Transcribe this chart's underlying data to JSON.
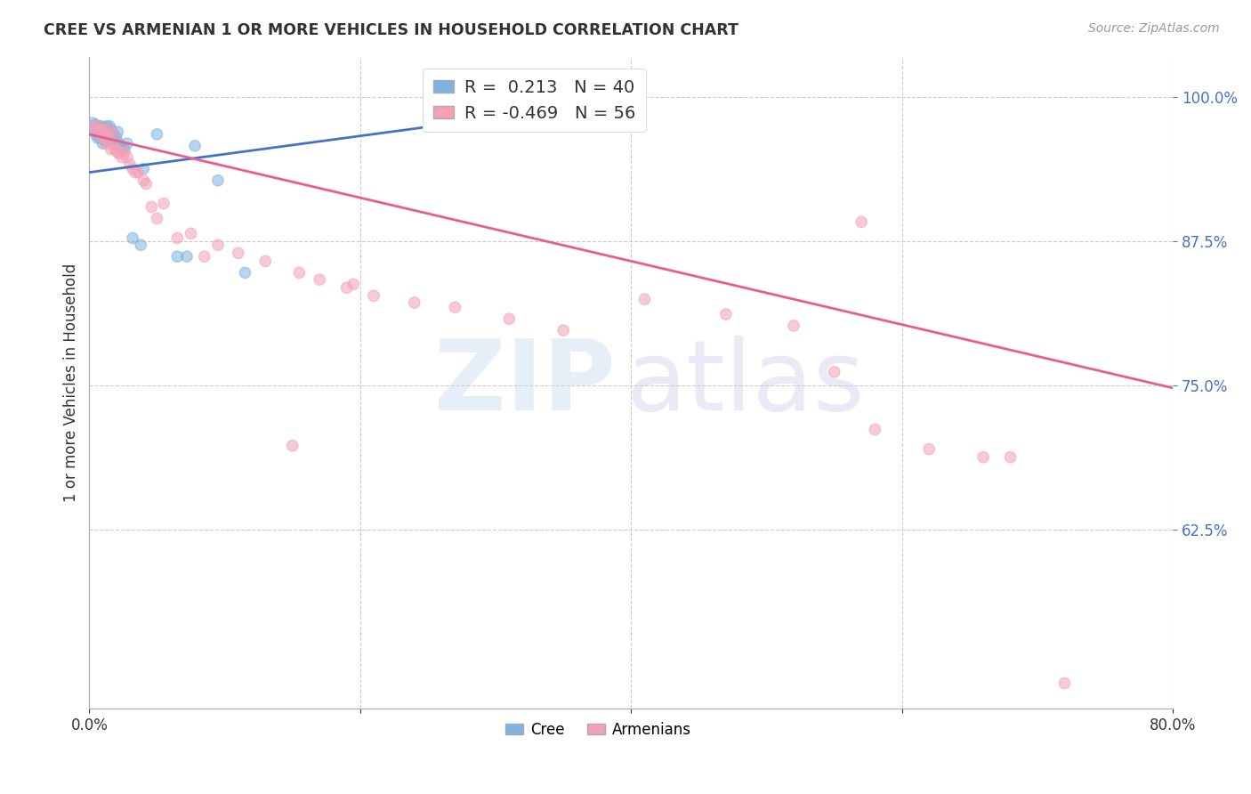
{
  "title": "CREE VS ARMENIAN 1 OR MORE VEHICLES IN HOUSEHOLD CORRELATION CHART",
  "source": "Source: ZipAtlas.com",
  "ylabel": "1 or more Vehicles in Household",
  "ytick_labels": [
    "100.0%",
    "87.5%",
    "75.0%",
    "62.5%"
  ],
  "ytick_values": [
    1.0,
    0.875,
    0.75,
    0.625
  ],
  "xlim": [
    0.0,
    0.8
  ],
  "ylim": [
    0.47,
    1.035
  ],
  "legend_cree": "Cree",
  "legend_armenian": "Armenians",
  "cree_color": "#7eb3e0",
  "armenian_color": "#f4a0b5",
  "cree_line_color": "#4472c4",
  "armenian_line_color": "#e85d8a",
  "cree_line_x": [
    0.0,
    0.38
  ],
  "cree_line_y": [
    0.935,
    0.995
  ],
  "armenian_line_x": [
    0.0,
    0.8
  ],
  "armenian_line_y": [
    0.968,
    0.748
  ],
  "cree_x": [
    0.002,
    0.004,
    0.005,
    0.006,
    0.007,
    0.007,
    0.008,
    0.009,
    0.009,
    0.01,
    0.01,
    0.011,
    0.012,
    0.012,
    0.013,
    0.013,
    0.014,
    0.015,
    0.015,
    0.016,
    0.016,
    0.017,
    0.018,
    0.019,
    0.02,
    0.021,
    0.022,
    0.024,
    0.026,
    0.028,
    0.032,
    0.038,
    0.04,
    0.05,
    0.065,
    0.072,
    0.078,
    0.095,
    0.115,
    0.38
  ],
  "cree_y": [
    0.975,
    0.975,
    0.968,
    0.965,
    0.97,
    0.975,
    0.965,
    0.97,
    0.975,
    0.96,
    0.972,
    0.968,
    0.962,
    0.972,
    0.966,
    0.975,
    0.968,
    0.972,
    0.975,
    0.962,
    0.972,
    0.965,
    0.968,
    0.96,
    0.965,
    0.97,
    0.96,
    0.955,
    0.955,
    0.96,
    0.878,
    0.872,
    0.938,
    0.968,
    0.862,
    0.862,
    0.958,
    0.928,
    0.848,
    0.988
  ],
  "cree_size": [
    200,
    120,
    80,
    80,
    80,
    80,
    80,
    80,
    80,
    80,
    80,
    80,
    80,
    80,
    80,
    80,
    80,
    80,
    80,
    80,
    80,
    80,
    80,
    80,
    80,
    80,
    80,
    80,
    80,
    80,
    80,
    80,
    80,
    80,
    80,
    80,
    80,
    80,
    80,
    220
  ],
  "armenian_x": [
    0.003,
    0.005,
    0.006,
    0.008,
    0.009,
    0.01,
    0.011,
    0.012,
    0.013,
    0.014,
    0.015,
    0.016,
    0.017,
    0.018,
    0.019,
    0.02,
    0.021,
    0.022,
    0.024,
    0.026,
    0.028,
    0.03,
    0.032,
    0.034,
    0.036,
    0.04,
    0.042,
    0.046,
    0.05,
    0.055,
    0.065,
    0.075,
    0.085,
    0.095,
    0.11,
    0.13,
    0.155,
    0.17,
    0.195,
    0.21,
    0.24,
    0.27,
    0.31,
    0.35,
    0.41,
    0.47,
    0.52,
    0.57,
    0.15,
    0.19,
    0.62,
    0.66,
    0.55,
    0.58,
    0.72,
    0.68
  ],
  "armenian_y": [
    0.975,
    0.972,
    0.975,
    0.968,
    0.972,
    0.965,
    0.972,
    0.96,
    0.968,
    0.965,
    0.972,
    0.955,
    0.96,
    0.968,
    0.955,
    0.955,
    0.952,
    0.952,
    0.948,
    0.952,
    0.948,
    0.942,
    0.938,
    0.935,
    0.935,
    0.928,
    0.925,
    0.905,
    0.895,
    0.908,
    0.878,
    0.882,
    0.862,
    0.872,
    0.865,
    0.858,
    0.848,
    0.842,
    0.838,
    0.828,
    0.822,
    0.818,
    0.808,
    0.798,
    0.825,
    0.812,
    0.802,
    0.892,
    0.698,
    0.835,
    0.695,
    0.688,
    0.762,
    0.712,
    0.492,
    0.688
  ],
  "armenian_size": [
    80,
    80,
    80,
    80,
    80,
    80,
    80,
    80,
    80,
    80,
    80,
    80,
    80,
    80,
    80,
    80,
    80,
    80,
    80,
    80,
    80,
    80,
    80,
    80,
    80,
    80,
    80,
    80,
    80,
    80,
    80,
    80,
    80,
    80,
    80,
    80,
    80,
    80,
    80,
    80,
    80,
    80,
    80,
    80,
    80,
    80,
    80,
    80,
    80,
    80,
    80,
    80,
    80,
    80,
    80,
    80
  ]
}
